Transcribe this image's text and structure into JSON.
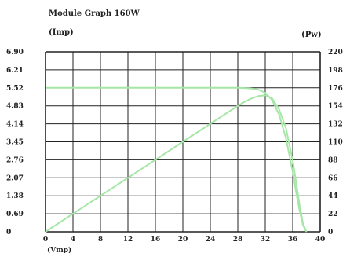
{
  "chart_data": {
    "type": "line",
    "title": "Module Graph 160W",
    "ylabel_left": "(Imp)",
    "ylabel_right": "(Pw)",
    "xlabel": "(Vmp)",
    "xlim": [
      0,
      40
    ],
    "ylim_left": [
      0,
      6.9
    ],
    "ylim_right": [
      0,
      220
    ],
    "x_ticks": [
      "0",
      "4",
      "8",
      "12",
      "16",
      "20",
      "24",
      "28",
      "32",
      "36",
      "40"
    ],
    "y_left_ticks": [
      "0",
      "0.69",
      "1.38",
      "2.07",
      "2.76",
      "3.45",
      "4.14",
      "4.83",
      "5.52",
      "6.21",
      "6.90"
    ],
    "y_right_ticks": [
      "0",
      "22",
      "44",
      "66",
      "88",
      "110",
      "132",
      "154",
      "176",
      "198",
      "220"
    ],
    "grid": true,
    "colors": {
      "curve": "#a6e6a6",
      "grid": "#222222"
    },
    "series": [
      {
        "axis": "left",
        "x": [
          0,
          4,
          8,
          12,
          16,
          20,
          24,
          28,
          29,
          30,
          31,
          32,
          33,
          34,
          35,
          36,
          36.5,
          37,
          37.5,
          38
        ],
        "values": [
          5.52,
          5.52,
          5.52,
          5.52,
          5.52,
          5.52,
          5.52,
          5.52,
          5.51,
          5.49,
          5.45,
          5.33,
          5.05,
          4.5,
          3.6,
          2.3,
          1.5,
          0.8,
          0.25,
          0
        ]
      },
      {
        "axis": "right",
        "x": [
          0,
          4,
          8,
          12,
          16,
          20,
          24,
          28,
          29,
          30,
          31,
          32,
          33,
          34,
          35,
          36,
          36.5,
          37,
          37.5,
          38
        ],
        "values": [
          0,
          22,
          44,
          66,
          88,
          110,
          132,
          154,
          159,
          163,
          166,
          167,
          163,
          150,
          127,
          87,
          60,
          32,
          10,
          0
        ]
      }
    ]
  }
}
